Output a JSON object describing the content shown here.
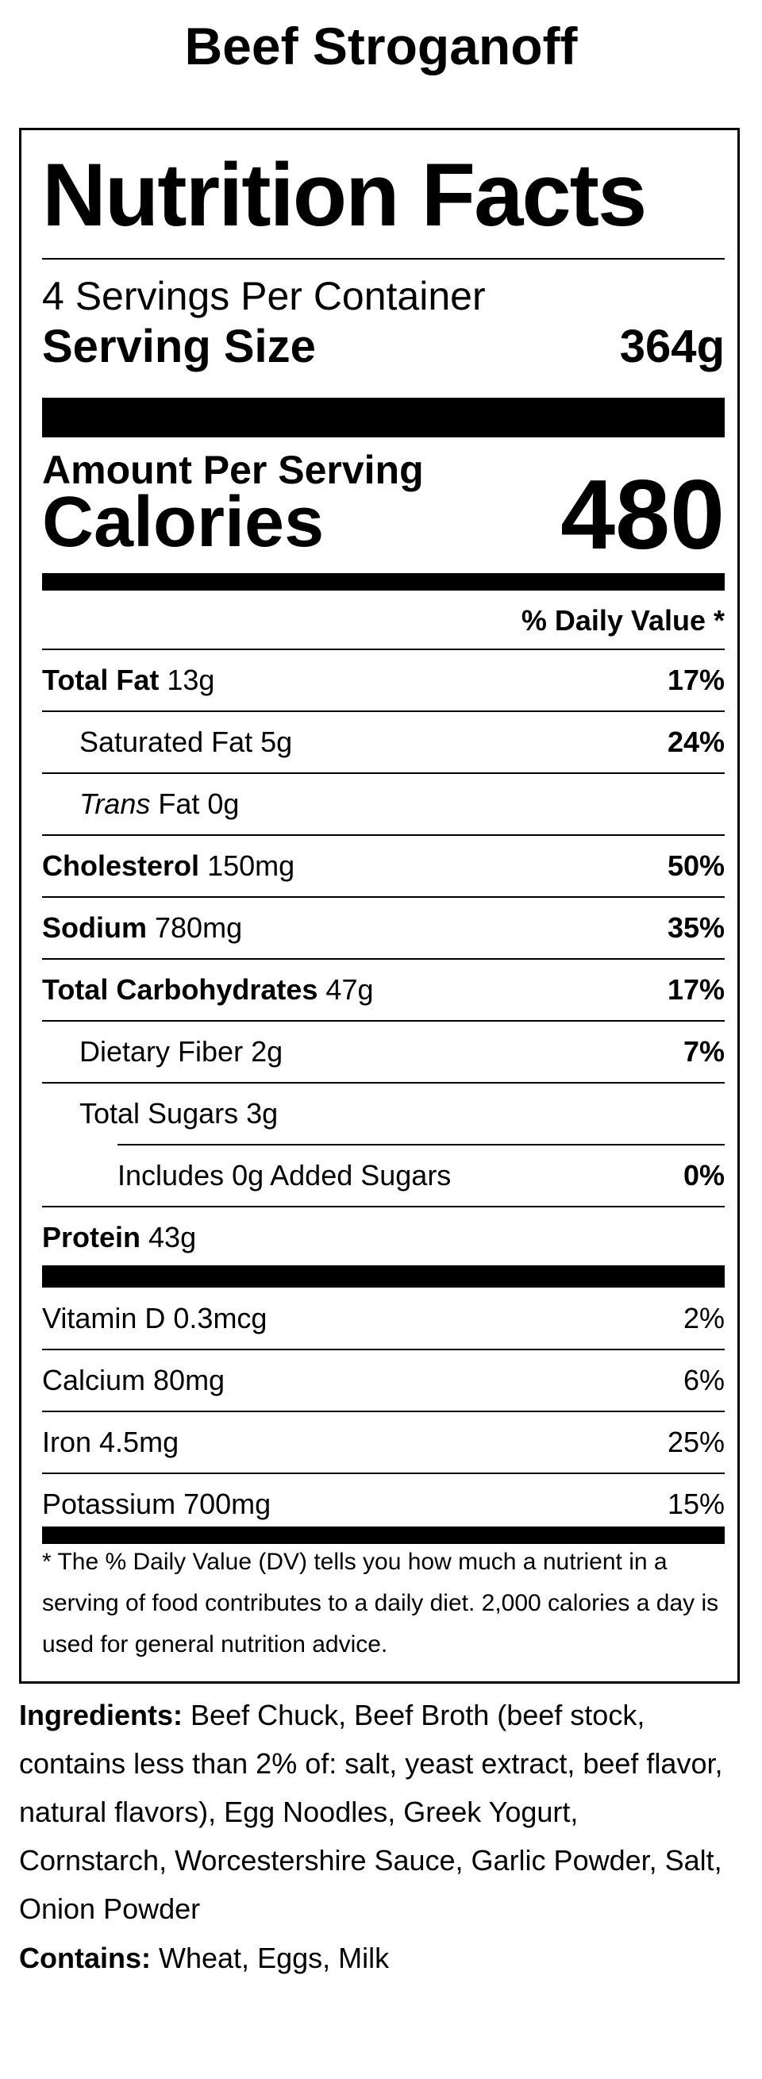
{
  "product": {
    "title": "Beef Stroganoff"
  },
  "label": {
    "heading": "Nutrition Facts",
    "servings_per_container": "4 Servings Per Container",
    "serving_size_label": "Serving Size",
    "serving_size_value": "364g",
    "amount_per_serving": "Amount Per Serving",
    "calories_label": "Calories",
    "calories_value": "480",
    "daily_value_header": "% Daily Value *",
    "nutrients": [
      {
        "name": "Total Fat",
        "amount": "13g",
        "dv": "17%"
      },
      {
        "name": "Saturated Fat",
        "amount": "5g",
        "dv": "24%"
      },
      {
        "name": "Trans",
        "name_suffix": "Fat",
        "amount": "0g",
        "dv": ""
      },
      {
        "name": "Cholesterol",
        "amount": "150mg",
        "dv": "50%"
      },
      {
        "name": "Sodium",
        "amount": "780mg",
        "dv": "35%"
      },
      {
        "name": "Total Carbohydrates",
        "amount": "47g",
        "dv": "17%"
      },
      {
        "name": "Dietary Fiber",
        "amount": "2g",
        "dv": "7%"
      },
      {
        "name": "Total Sugars",
        "amount": "3g",
        "dv": ""
      },
      {
        "name": "Includes 0g Added Sugars",
        "amount": "",
        "dv": "0%"
      },
      {
        "name": "Protein",
        "amount": "43g",
        "dv": ""
      }
    ],
    "vitamins": [
      {
        "text": "Vitamin D 0.3mcg",
        "dv": "2%"
      },
      {
        "text": "Calcium 80mg",
        "dv": "6%"
      },
      {
        "text": "Iron 4.5mg",
        "dv": "25%"
      },
      {
        "text": "Potassium 700mg",
        "dv": "15%"
      }
    ],
    "footnote": "* The % Daily Value (DV) tells you how much a nutrient in a serving of food contributes to a daily diet. 2,000 calories a day is used for general nutrition advice."
  },
  "ingredients": {
    "label": "Ingredients:",
    "text": "Beef Chuck, Beef Broth (beef stock, contains less than 2% of: salt, yeast extract, beef flavor, natural flavors), Egg Noodles, Greek Yogurt, Cornstarch, Worcestershire Sauce, Garlic Powder, Salt, Onion Powder"
  },
  "allergens": {
    "label": "Contains:",
    "text": "Wheat, Eggs, Milk"
  }
}
